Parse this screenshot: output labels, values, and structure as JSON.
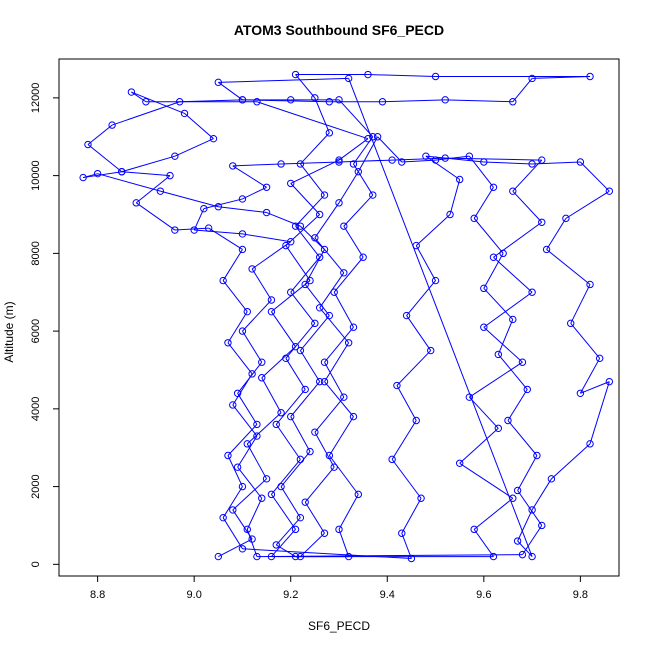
{
  "chart_data": {
    "type": "scatter",
    "title": "ATOM3 Southbound SF6_PECD",
    "xlabel": "SF6_PECD",
    "ylabel": "Altitude (m)",
    "xlim": [
      8.72,
      9.88
    ],
    "ylim": [
      -300,
      13000
    ],
    "xticks": [
      "8.8",
      "9.0",
      "9.2",
      "9.4",
      "9.6",
      "9.8"
    ],
    "yticks": [
      "0",
      "2000",
      "4000",
      "6000",
      "8000",
      "10000",
      "12000"
    ],
    "series_color": "#0000ff",
    "marker": "open-circle",
    "line": "connected",
    "grid": false,
    "points": [
      [
        9.05,
        200
      ],
      [
        9.12,
        650
      ],
      [
        9.08,
        1400
      ],
      [
        9.15,
        2200
      ],
      [
        9.11,
        3100
      ],
      [
        9.18,
        3900
      ],
      [
        9.14,
        4800
      ],
      [
        9.21,
        5600
      ],
      [
        9.16,
        6500
      ],
      [
        9.24,
        7300
      ],
      [
        9.19,
        8200
      ],
      [
        9.26,
        9000
      ],
      [
        9.2,
        9800
      ],
      [
        9.3,
        10400
      ],
      [
        9.36,
        10950
      ],
      [
        9.13,
        11900
      ],
      [
        8.9,
        11900
      ],
      [
        8.87,
        12150
      ],
      [
        8.98,
        11600
      ],
      [
        9.04,
        10950
      ],
      [
        8.96,
        10500
      ],
      [
        8.85,
        10100
      ],
      [
        8.77,
        9950
      ],
      [
        8.8,
        10050
      ],
      [
        8.93,
        9600
      ],
      [
        9.05,
        9200
      ],
      [
        9.15,
        9050
      ],
      [
        9.22,
        8700
      ],
      [
        9.27,
        8100
      ],
      [
        9.23,
        7200
      ],
      [
        9.28,
        6400
      ],
      [
        9.22,
        5500
      ],
      [
        9.26,
        4700
      ],
      [
        9.2,
        3800
      ],
      [
        9.24,
        2900
      ],
      [
        9.18,
        2000
      ],
      [
        9.22,
        1200
      ],
      [
        9.17,
        500
      ],
      [
        9.21,
        200
      ],
      [
        9.62,
        200
      ],
      [
        9.58,
        900
      ],
      [
        9.66,
        1700
      ],
      [
        9.55,
        2600
      ],
      [
        9.63,
        3500
      ],
      [
        9.57,
        4300
      ],
      [
        9.68,
        5200
      ],
      [
        9.6,
        6100
      ],
      [
        9.7,
        7000
      ],
      [
        9.62,
        7900
      ],
      [
        9.72,
        8800
      ],
      [
        9.66,
        9600
      ],
      [
        9.72,
        10400
      ],
      [
        9.52,
        10450
      ],
      [
        9.41,
        10400
      ],
      [
        9.3,
        10350
      ],
      [
        9.18,
        10300
      ],
      [
        9.08,
        10250
      ],
      [
        9.15,
        9700
      ],
      [
        9.1,
        9400
      ],
      [
        9.02,
        9150
      ],
      [
        9.0,
        8600
      ],
      [
        9.1,
        8500
      ],
      [
        9.2,
        8300
      ],
      [
        9.12,
        7600
      ],
      [
        9.16,
        6800
      ],
      [
        9.1,
        6000
      ],
      [
        9.14,
        5200
      ],
      [
        9.09,
        4400
      ],
      [
        9.13,
        3600
      ],
      [
        9.07,
        2800
      ],
      [
        9.1,
        2000
      ],
      [
        9.06,
        1200
      ],
      [
        9.1,
        400
      ],
      [
        9.45,
        150
      ],
      [
        9.43,
        800
      ],
      [
        9.47,
        1700
      ],
      [
        9.41,
        2700
      ],
      [
        9.46,
        3700
      ],
      [
        9.42,
        4600
      ],
      [
        9.49,
        5500
      ],
      [
        9.44,
        6400
      ],
      [
        9.5,
        7300
      ],
      [
        9.46,
        8200
      ],
      [
        9.53,
        9000
      ],
      [
        9.55,
        9900
      ],
      [
        9.48,
        10500
      ],
      [
        9.6,
        10350
      ],
      [
        9.7,
        10300
      ],
      [
        9.8,
        10350
      ],
      [
        9.86,
        9600
      ],
      [
        9.77,
        8900
      ],
      [
        9.73,
        8100
      ],
      [
        9.82,
        7200
      ],
      [
        9.78,
        6200
      ],
      [
        9.84,
        5300
      ],
      [
        9.8,
        4400
      ],
      [
        9.86,
        4700
      ],
      [
        9.82,
        3100
      ],
      [
        9.74,
        2200
      ],
      [
        9.7,
        1400
      ],
      [
        9.67,
        600
      ],
      [
        9.7,
        200
      ],
      [
        9.32,
        12500
      ],
      [
        9.05,
        12400
      ],
      [
        9.1,
        11950
      ],
      [
        9.28,
        11900
      ],
      [
        9.39,
        11900
      ],
      [
        9.52,
        11950
      ],
      [
        9.66,
        11900
      ],
      [
        9.7,
        12500
      ],
      [
        9.82,
        12550
      ],
      [
        9.5,
        12550
      ],
      [
        9.36,
        12600
      ],
      [
        9.21,
        12600
      ],
      [
        9.25,
        12000
      ],
      [
        9.28,
        11100
      ],
      [
        9.22,
        10300
      ],
      [
        9.27,
        9500
      ],
      [
        9.21,
        8700
      ],
      [
        9.26,
        7900
      ],
      [
        9.2,
        7000
      ],
      [
        9.25,
        6200
      ],
      [
        9.19,
        5300
      ],
      [
        9.23,
        4500
      ],
      [
        9.17,
        3600
      ],
      [
        9.22,
        2700
      ],
      [
        9.16,
        1800
      ],
      [
        9.21,
        900
      ],
      [
        9.16,
        200
      ],
      [
        9.32,
        200
      ],
      [
        9.3,
        900
      ],
      [
        9.34,
        1800
      ],
      [
        9.28,
        2800
      ],
      [
        9.33,
        3800
      ],
      [
        9.27,
        4700
      ],
      [
        9.32,
        5700
      ],
      [
        9.26,
        6600
      ],
      [
        9.31,
        7500
      ],
      [
        9.25,
        8400
      ],
      [
        9.3,
        9300
      ],
      [
        9.34,
        10100
      ],
      [
        9.38,
        11000
      ],
      [
        9.43,
        10350
      ],
      [
        9.5,
        10400
      ],
      [
        9.57,
        10500
      ],
      [
        9.62,
        9700
      ],
      [
        9.58,
        8900
      ],
      [
        9.64,
        8000
      ],
      [
        9.6,
        7100
      ],
      [
        9.66,
        6300
      ],
      [
        9.63,
        5400
      ],
      [
        9.69,
        4500
      ],
      [
        9.65,
        3700
      ],
      [
        9.71,
        2800
      ],
      [
        9.67,
        1900
      ],
      [
        9.72,
        1000
      ],
      [
        9.68,
        250
      ],
      [
        9.13,
        200
      ],
      [
        9.11,
        900
      ],
      [
        9.14,
        1700
      ],
      [
        9.09,
        2500
      ],
      [
        9.13,
        3300
      ],
      [
        9.08,
        4100
      ],
      [
        9.12,
        4900
      ],
      [
        9.07,
        5700
      ],
      [
        9.11,
        6500
      ],
      [
        9.06,
        7300
      ],
      [
        9.1,
        8100
      ],
      [
        9.03,
        8650
      ],
      [
        8.96,
        8600
      ],
      [
        8.88,
        9300
      ],
      [
        8.95,
        10000
      ],
      [
        8.85,
        10100
      ],
      [
        8.78,
        10800
      ],
      [
        8.83,
        11300
      ],
      [
        8.97,
        11900
      ],
      [
        9.1,
        11950
      ],
      [
        9.2,
        11950
      ],
      [
        9.3,
        11950
      ],
      [
        9.37,
        11000
      ],
      [
        9.33,
        10300
      ],
      [
        9.37,
        9500
      ],
      [
        9.31,
        8700
      ],
      [
        9.35,
        7900
      ],
      [
        9.29,
        7000
      ],
      [
        9.33,
        6100
      ],
      [
        9.27,
        5200
      ],
      [
        9.31,
        4300
      ],
      [
        9.25,
        3400
      ],
      [
        9.29,
        2500
      ],
      [
        9.23,
        1600
      ],
      [
        9.27,
        800
      ],
      [
        9.22,
        200
      ]
    ]
  }
}
